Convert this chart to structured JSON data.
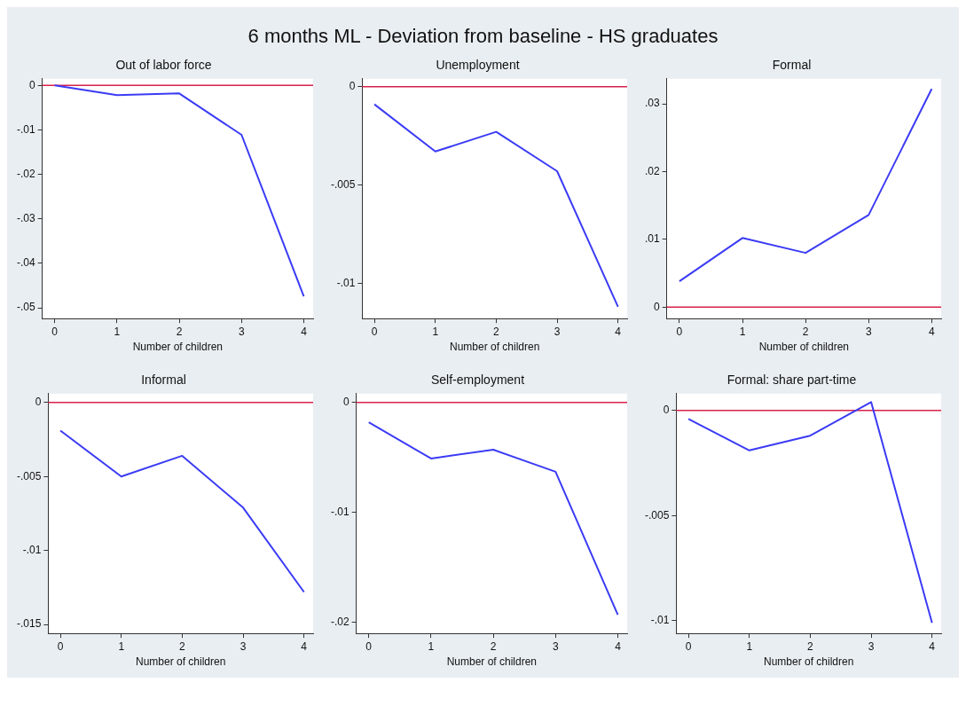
{
  "chart_data": [
    {
      "type": "line",
      "title": "Out of labor force",
      "xlabel": "Number of children",
      "annotations": [
        "6 months ML - Deviation from baseline - HS graduates"
      ],
      "x": [
        0,
        1,
        2,
        3,
        4
      ],
      "values": [
        0,
        -0.0022,
        -0.0018,
        -0.0111,
        -0.0474
      ],
      "color": "#3b3bf5",
      "xlim": [
        -0.2,
        4.15
      ],
      "xticks": [
        0,
        1,
        2,
        3,
        4
      ],
      "ylim": [
        -0.0524,
        0.0015
      ],
      "yticks": [
        {
          "value": -0.05,
          "label": "-.05"
        },
        {
          "value": -0.04,
          "label": "-.04"
        },
        {
          "value": -0.03,
          "label": "-.03"
        },
        {
          "value": -0.02,
          "label": "-.02"
        },
        {
          "value": -0.01,
          "label": "-.01"
        },
        {
          "value": 0,
          "label": "0"
        }
      ],
      "ref_lines": [
        {
          "axis": "y",
          "value": 0,
          "color": "#d8204a"
        }
      ]
    },
    {
      "type": "line",
      "title": "Unemployment",
      "xlabel": "Number of children",
      "x": [
        0,
        1,
        2,
        3,
        4
      ],
      "values": [
        -0.0009,
        -0.0033,
        -0.0023,
        -0.0043,
        -0.0112
      ],
      "color": "#3b3bf5",
      "xlim": [
        -0.2,
        4.15
      ],
      "xticks": [
        0,
        1,
        2,
        3,
        4
      ],
      "ylim": [
        -0.0118,
        0.0004
      ],
      "yticks": [
        {
          "value": -0.01,
          "label": "-.01"
        },
        {
          "value": -0.005,
          "label": "-.005"
        },
        {
          "value": 0,
          "label": "0"
        }
      ],
      "ref_lines": [
        {
          "axis": "y",
          "value": 0,
          "color": "#d8204a"
        }
      ]
    },
    {
      "type": "line",
      "title": "Formal",
      "xlabel": "Number of children",
      "x": [
        0,
        1,
        2,
        3,
        4
      ],
      "values": [
        0.0038,
        0.0102,
        0.008,
        0.0136,
        0.0322
      ],
      "color": "#3b3bf5",
      "xlim": [
        -0.2,
        4.15
      ],
      "xticks": [
        0,
        1,
        2,
        3,
        4
      ],
      "ylim": [
        -0.0017,
        0.0337
      ],
      "yticks": [
        {
          "value": 0,
          "label": "0"
        },
        {
          "value": 0.01,
          "label": ".01"
        },
        {
          "value": 0.02,
          "label": ".02"
        },
        {
          "value": 0.03,
          "label": ".03"
        }
      ],
      "ref_lines": [
        {
          "axis": "y",
          "value": 0,
          "color": "#d8204a"
        }
      ]
    },
    {
      "type": "line",
      "title": "Informal",
      "xlabel": "Number of children",
      "x": [
        0,
        1,
        2,
        3,
        4
      ],
      "values": [
        -0.0019,
        -0.005,
        -0.0036,
        -0.0071,
        -0.0128
      ],
      "color": "#3b3bf5",
      "xlim": [
        -0.2,
        4.15
      ],
      "xticks": [
        0,
        1,
        2,
        3,
        4
      ],
      "ylim": [
        -0.0156,
        0.0006
      ],
      "yticks": [
        {
          "value": -0.015,
          "label": "-.015"
        },
        {
          "value": -0.01,
          "label": "-.01"
        },
        {
          "value": -0.005,
          "label": "-.005"
        },
        {
          "value": 0,
          "label": "0"
        }
      ],
      "ref_lines": [
        {
          "axis": "y",
          "value": 0,
          "color": "#d8204a"
        }
      ]
    },
    {
      "type": "line",
      "title": "Self-employment",
      "xlabel": "Number of children",
      "x": [
        0,
        1,
        2,
        3,
        4
      ],
      "values": [
        -0.0018,
        -0.0051,
        -0.0043,
        -0.0063,
        -0.0193
      ],
      "color": "#3b3bf5",
      "xlim": [
        -0.2,
        4.15
      ],
      "xticks": [
        0,
        1,
        2,
        3,
        4
      ],
      "ylim": [
        -0.021,
        0.0008
      ],
      "yticks": [
        {
          "value": -0.02,
          "label": "-.02"
        },
        {
          "value": -0.01,
          "label": "-.01"
        },
        {
          "value": 0,
          "label": "0"
        }
      ],
      "ref_lines": [
        {
          "axis": "y",
          "value": 0,
          "color": "#d8204a"
        }
      ]
    },
    {
      "type": "line",
      "title": "Formal: share part-time",
      "xlabel": "Number of children",
      "x": [
        0,
        1,
        2,
        3,
        4
      ],
      "values": [
        -0.0004,
        -0.0019,
        -0.0012,
        0.0004,
        -0.0101
      ],
      "color": "#3b3bf5",
      "xlim": [
        -0.2,
        4.15
      ],
      "xticks": [
        0,
        1,
        2,
        3,
        4
      ],
      "ylim": [
        -0.0106,
        0.0008
      ],
      "yticks": [
        {
          "value": -0.01,
          "label": "-.01"
        },
        {
          "value": -0.005,
          "label": "-.005"
        },
        {
          "value": 0,
          "label": "0"
        }
      ],
      "ref_lines": [
        {
          "axis": "y",
          "value": 0,
          "color": "#d8204a"
        }
      ]
    }
  ]
}
